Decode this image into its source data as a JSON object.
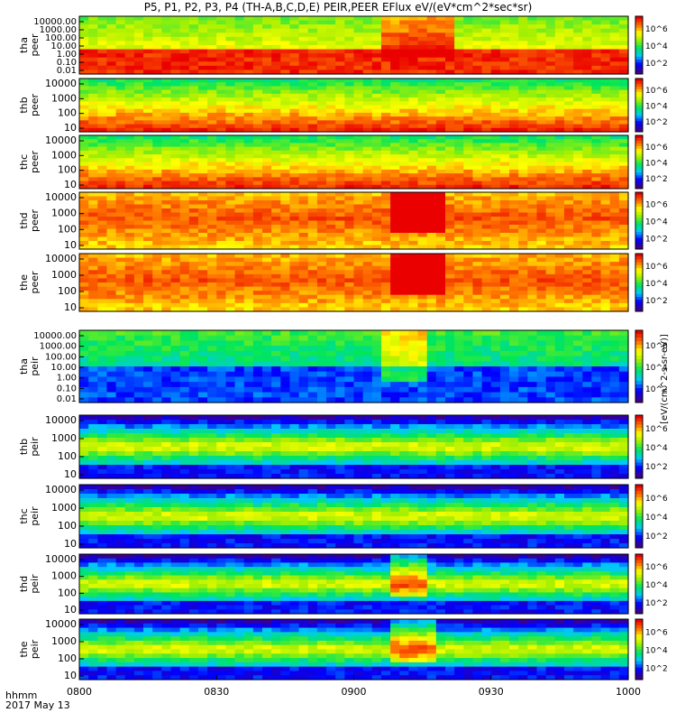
{
  "chart_data": {
    "type": "heatmap",
    "title": "P5, P1, P2, P3, P4 (TH-A,B,C,D,E) PEIR,PEER EFlux eV/(eV*cm^2*sec*sr)",
    "x_label_line1": "hhmm",
    "x_label_line2": "2017 May 13",
    "x_ticks": [
      "0800",
      "0830",
      "0900",
      "0930",
      "1000"
    ],
    "colorbar_label": "[eV/(cm^2-s-sr-eV)]",
    "colorbar_ticks": [
      "10^2",
      "10^4",
      "10^6"
    ],
    "panels": [
      {
        "probe": "tha",
        "species": "peer",
        "y_ticks": [
          "10000.00",
          "1000.00",
          "100.00",
          "10.00",
          "1.00",
          "0.10",
          "0.01"
        ],
        "ylim_log": [
          -2,
          4.3
        ],
        "event_start_hhmm": "0905",
        "event_end_hhmm": "0920"
      },
      {
        "probe": "thb",
        "species": "peer",
        "y_ticks": [
          "10000",
          "1000",
          "100",
          "10"
        ],
        "ylim_log": [
          1,
          4.3
        ]
      },
      {
        "probe": "thc",
        "species": "peer",
        "y_ticks": [
          "10000",
          "1000",
          "100",
          "10"
        ],
        "ylim_log": [
          1,
          4.3
        ]
      },
      {
        "probe": "thd",
        "species": "peer",
        "y_ticks": [
          "10000",
          "1000",
          "100",
          "10"
        ],
        "ylim_log": [
          1,
          4.3
        ],
        "event_start_hhmm": "0907",
        "event_end_hhmm": "0918"
      },
      {
        "probe": "the",
        "species": "peer",
        "y_ticks": [
          "10000",
          "1000",
          "100",
          "10"
        ],
        "ylim_log": [
          1,
          4.3
        ],
        "event_start_hhmm": "0907",
        "event_end_hhmm": "0918"
      },
      {
        "probe": "tha",
        "species": "peir",
        "y_ticks": [
          "10000.00",
          "1000.00",
          "100.00",
          "10.00",
          "1.00",
          "0.10",
          "0.01"
        ],
        "ylim_log": [
          -2,
          4.3
        ],
        "event_start_hhmm": "0905",
        "event_end_hhmm": "0915"
      },
      {
        "probe": "thb",
        "species": "peir",
        "y_ticks": [
          "10000",
          "1000",
          "100",
          "10"
        ],
        "ylim_log": [
          1,
          4.3
        ]
      },
      {
        "probe": "thc",
        "species": "peir",
        "y_ticks": [
          "10000",
          "1000",
          "100",
          "10"
        ],
        "ylim_log": [
          1,
          4.3
        ]
      },
      {
        "probe": "thd",
        "species": "peir",
        "y_ticks": [
          "10000",
          "1000",
          "100",
          "10"
        ],
        "ylim_log": [
          1,
          4.3
        ],
        "event_start_hhmm": "0908",
        "event_end_hhmm": "0915"
      },
      {
        "probe": "the",
        "species": "peir",
        "y_ticks": [
          "10000",
          "1000",
          "100",
          "10"
        ],
        "ylim_log": [
          1,
          4.3
        ],
        "event_start_hhmm": "0908",
        "event_end_hhmm": "0916"
      }
    ]
  }
}
